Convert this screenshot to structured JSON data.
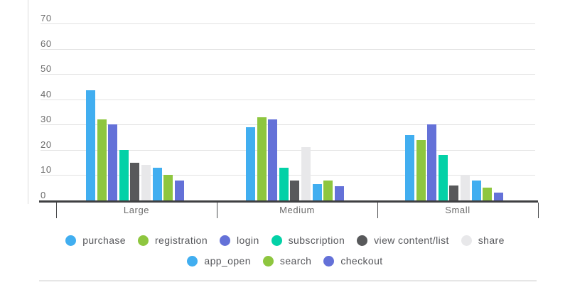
{
  "chart_data": {
    "type": "bar",
    "title": "",
    "xlabel": "",
    "ylabel": "",
    "categories": [
      "Large",
      "Medium",
      "Small"
    ],
    "yticks": [
      70,
      60,
      50,
      40,
      30,
      20,
      10,
      0
    ],
    "ylim": [
      0,
      70
    ],
    "grid": true,
    "legend_position": "bottom",
    "legend_rows": [
      [
        0,
        1,
        2,
        3,
        4,
        5
      ],
      [
        6,
        7,
        8
      ]
    ],
    "series": [
      {
        "name": "purchase",
        "color": "#41aef0",
        "values": [
          43.5,
          29,
          26
        ]
      },
      {
        "name": "registration",
        "color": "#8ec63f",
        "values": [
          32,
          33,
          24
        ]
      },
      {
        "name": "login",
        "color": "#6471d8",
        "values": [
          30,
          32,
          30
        ]
      },
      {
        "name": "subscription",
        "color": "#03d1a7",
        "values": [
          20,
          13,
          18
        ]
      },
      {
        "name": "view content/list",
        "color": "#58595b",
        "values": [
          15,
          8,
          6
        ]
      },
      {
        "name": "share",
        "color": "#e8e8ea",
        "values": [
          14,
          21,
          10
        ]
      },
      {
        "name": "app_open",
        "color": "#41aef0",
        "values": [
          13,
          6.5,
          8
        ]
      },
      {
        "name": "search",
        "color": "#8ec63f",
        "values": [
          10,
          8,
          5
        ]
      },
      {
        "name": "checkout",
        "color": "#6471d8",
        "values": [
          8,
          5.5,
          3
        ]
      }
    ],
    "colors": {
      "gridline": "#e2e2e2",
      "axis": "#3f4042",
      "tick_label": "#6b6b6b",
      "legend_text": "#55565a"
    }
  }
}
